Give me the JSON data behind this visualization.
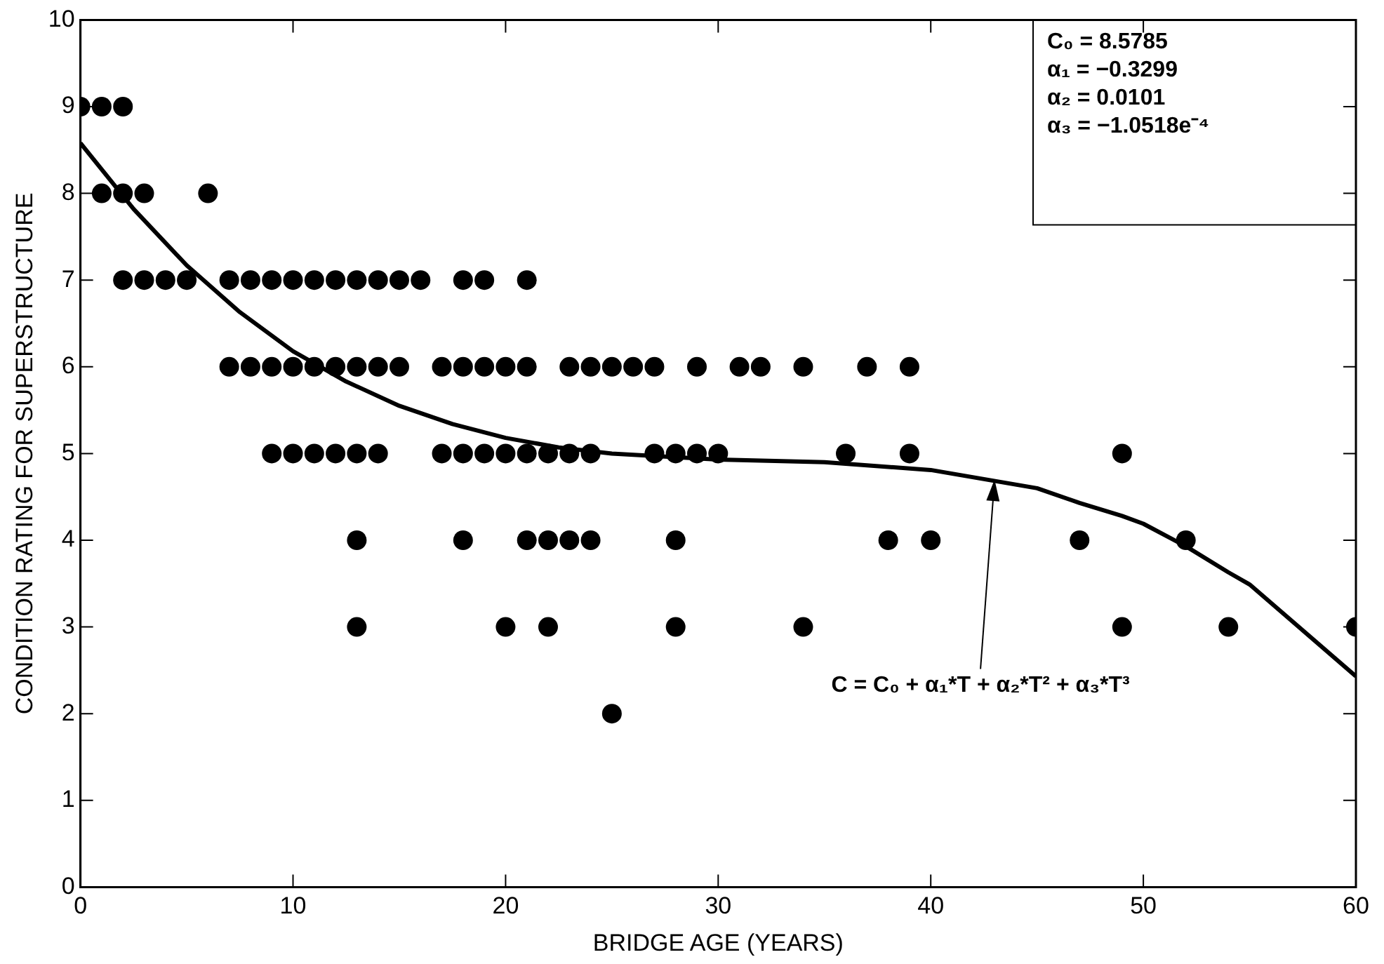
{
  "chart_data": {
    "type": "scatter",
    "xlabel": "BRIDGE AGE (YEARS)",
    "ylabel": "CONDITION RATING FOR SUPERSTRUCTURE",
    "xlim": [
      0,
      60
    ],
    "xticks": [
      0,
      10,
      20,
      30,
      40,
      50,
      60
    ],
    "ylim": [
      0,
      10
    ],
    "yticks": [
      0,
      1,
      2,
      3,
      4,
      5,
      6,
      7,
      8,
      9,
      10
    ],
    "grid": false,
    "legend": false,
    "marker": "circle",
    "series": [
      {
        "color": "#000000",
        "x": [
          0,
          1,
          2,
          1,
          2,
          3,
          6,
          2,
          3,
          4,
          5,
          7,
          8,
          9,
          10,
          11,
          12,
          13,
          14,
          15,
          16,
          18,
          19,
          21,
          7,
          8,
          9,
          10,
          11,
          12,
          13,
          14,
          15,
          17,
          18,
          19,
          20,
          21,
          23,
          24,
          25,
          26,
          27,
          29,
          31,
          32,
          34,
          37,
          39,
          9,
          10,
          11,
          12,
          13,
          14,
          17,
          18,
          19,
          20,
          21,
          22,
          23,
          24,
          27,
          28,
          29,
          30,
          36,
          39,
          49,
          13,
          18,
          21,
          22,
          23,
          24,
          28,
          38,
          40,
          47,
          52,
          13,
          20,
          22,
          28,
          34,
          49,
          54,
          60,
          25
        ],
        "values": [
          9,
          9,
          9,
          8,
          8,
          8,
          8,
          7,
          7,
          7,
          7,
          7,
          7,
          7,
          7,
          7,
          7,
          7,
          7,
          7,
          7,
          7,
          7,
          7,
          6,
          6,
          6,
          6,
          6,
          6,
          6,
          6,
          6,
          6,
          6,
          6,
          6,
          6,
          6,
          6,
          6,
          6,
          6,
          6,
          6,
          6,
          6,
          6,
          6,
          5,
          5,
          5,
          5,
          5,
          5,
          5,
          5,
          5,
          5,
          5,
          5,
          5,
          5,
          5,
          5,
          5,
          5,
          5,
          5,
          5,
          4,
          4,
          4,
          4,
          4,
          4,
          4,
          4,
          4,
          4,
          4,
          3,
          3,
          3,
          3,
          3,
          3,
          3,
          3,
          2
        ]
      },
      {
        "type": "line",
        "color": "#000000",
        "line_style": "solid",
        "marker": "none",
        "x": [
          0,
          2.5,
          5,
          7.5,
          10,
          12.5,
          15,
          17.5,
          20,
          22.5,
          25,
          30,
          35,
          40,
          45,
          47,
          49,
          50,
          52,
          54,
          55,
          60
        ],
        "values": [
          8.58,
          7.82,
          7.17,
          6.63,
          6.18,
          5.83,
          5.55,
          5.34,
          5.18,
          5.07,
          5.0,
          4.93,
          4.9,
          4.81,
          4.6,
          4.43,
          4.28,
          4.19,
          3.93,
          3.63,
          3.49,
          2.43
        ]
      }
    ],
    "annotations": [
      "C₀ = 8.5785",
      "α₁ = −0.3299",
      "α₂ = 0.0101",
      "α₃ = −1.0518e⁻⁴",
      {
        "text": "C = C₀ + α₁*T + α₂*T² + α₃*T³",
        "x": 43,
        "y": 4.7
      }
    ]
  }
}
